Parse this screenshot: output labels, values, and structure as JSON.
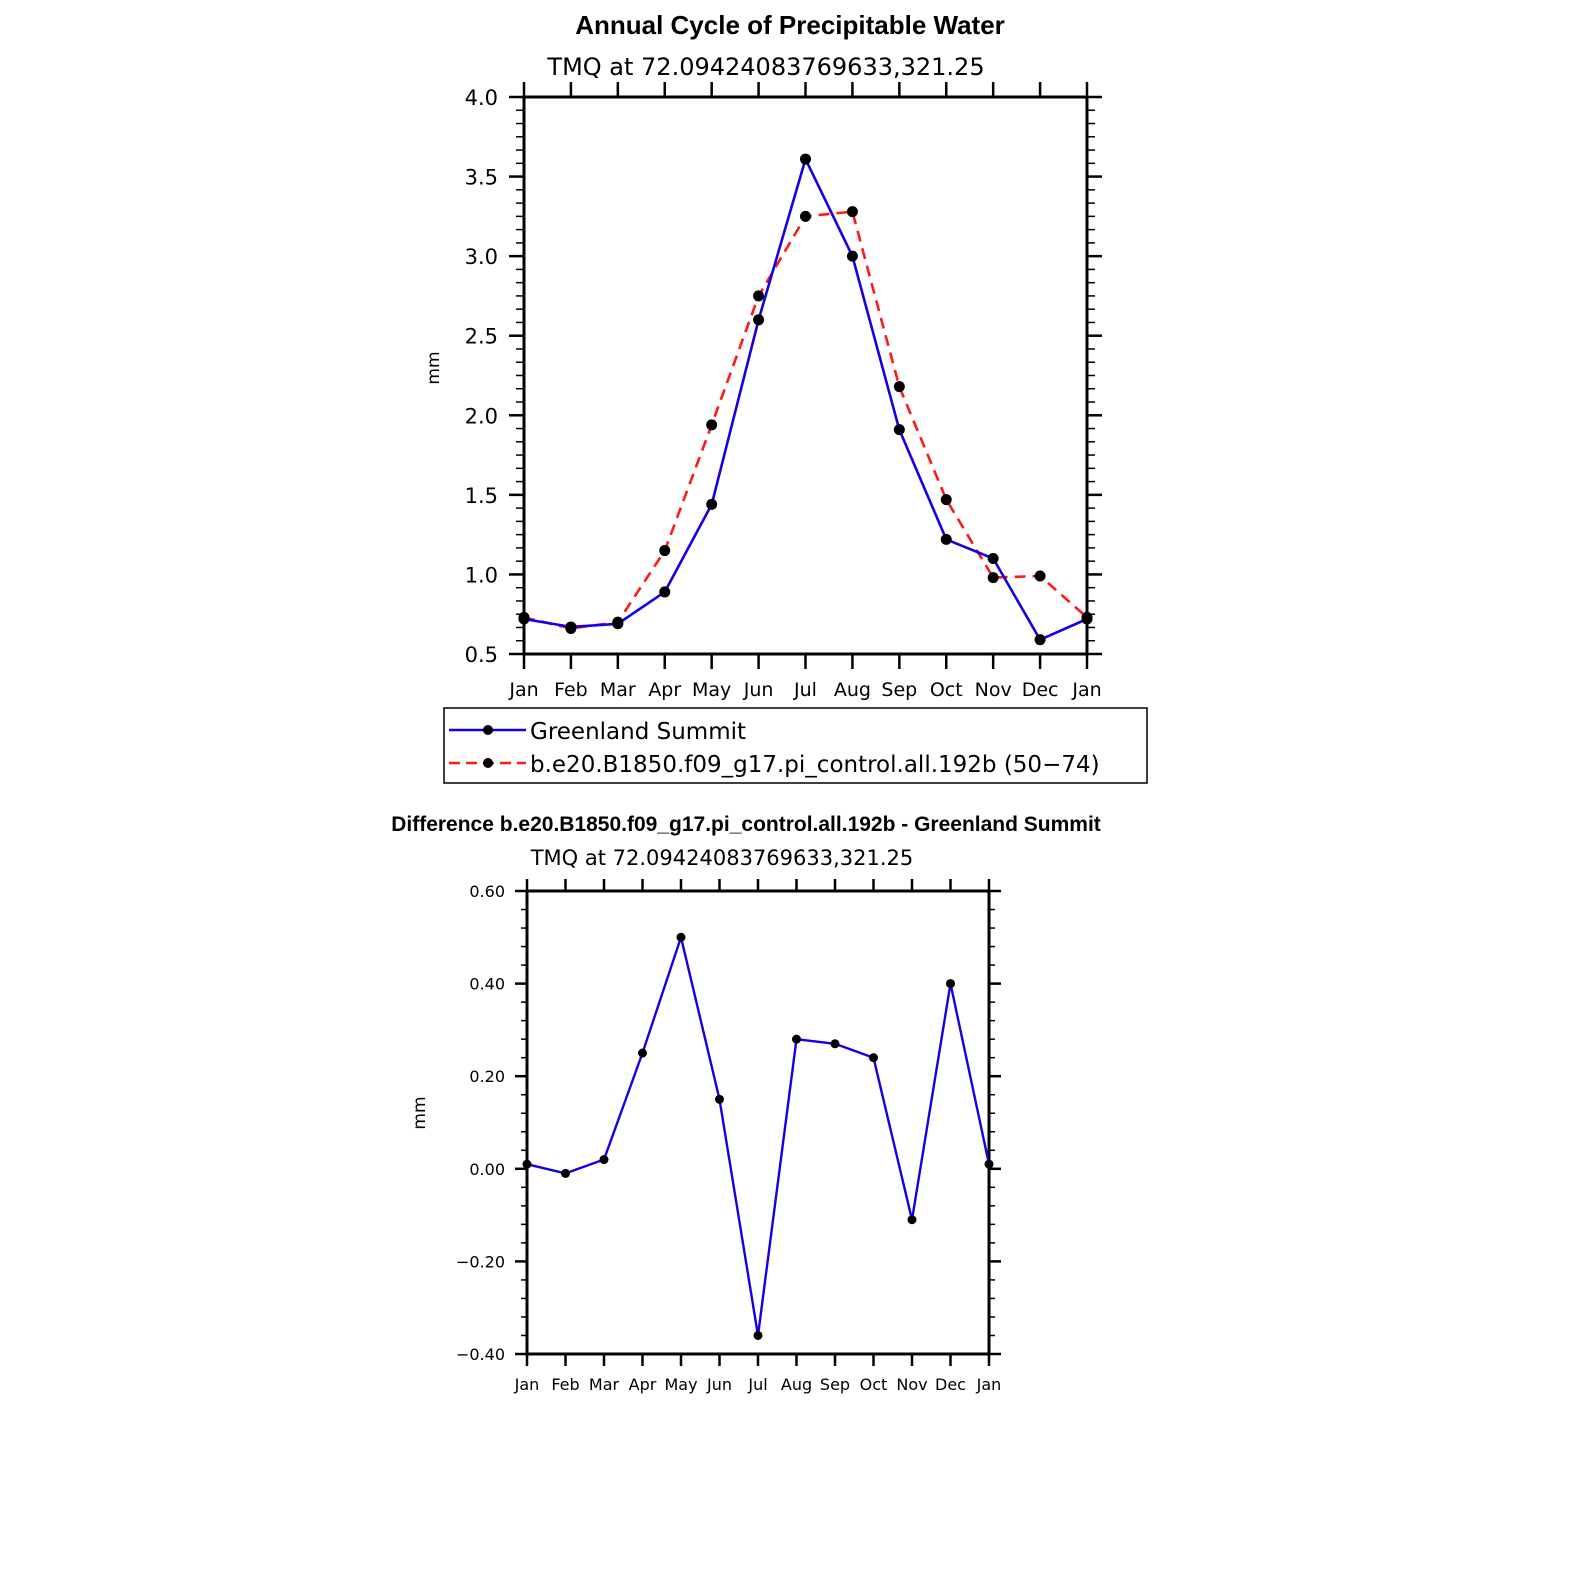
{
  "colors": {
    "obs": "#1400e6",
    "model": "#ff1a1a",
    "marker": "#000000",
    "axis": "#000000"
  },
  "chart_data": [
    {
      "type": "line",
      "title": "Annual Cycle of Precipitable Water",
      "subtitle": "TMQ at 72.09424083769633,321.25",
      "ylabel": "mm",
      "ylim": [
        0.5,
        4.0
      ],
      "yticks": [
        "0.5",
        "1.0",
        "1.5",
        "2.0",
        "2.5",
        "3.0",
        "3.5",
        "4.0"
      ],
      "yticks_values": [
        0.5,
        1.0,
        1.5,
        2.0,
        2.5,
        3.0,
        3.5,
        4.0
      ],
      "categories": [
        "Jan",
        "Feb",
        "Mar",
        "Apr",
        "May",
        "Jun",
        "Jul",
        "Aug",
        "Sep",
        "Oct",
        "Nov",
        "Dec",
        "Jan"
      ],
      "series": [
        {
          "name": "Greenland Summit",
          "style": "solid",
          "values": [
            0.72,
            0.67,
            0.69,
            0.89,
            1.44,
            2.6,
            3.61,
            3.0,
            1.91,
            1.22,
            1.1,
            0.59,
            0.72
          ]
        },
        {
          "name": "b.e20.B1850.f09_g17.pi_control.all.192b (50−74)",
          "style": "dashed",
          "values": [
            0.73,
            0.66,
            0.7,
            1.15,
            1.94,
            2.75,
            3.25,
            3.28,
            2.18,
            1.47,
            0.98,
            0.99,
            0.73
          ]
        }
      ],
      "legend": {
        "position": "bottom"
      }
    },
    {
      "type": "line",
      "title": "Difference b.e20.B1850.f09_g17.pi_control.all.192b - Greenland Summit",
      "subtitle": "TMQ at 72.09424083769633,321.25",
      "ylabel": "mm",
      "ylim": [
        -0.4,
        0.6
      ],
      "yticks": [
        "−0.40",
        "−0.20",
        "0.00",
        "0.20",
        "0.40",
        "0.60"
      ],
      "yticks_values": [
        -0.4,
        -0.2,
        0.0,
        0.2,
        0.4,
        0.6
      ],
      "categories": [
        "Jan",
        "Feb",
        "Mar",
        "Apr",
        "May",
        "Jun",
        "Jul",
        "Aug",
        "Sep",
        "Oct",
        "Nov",
        "Dec",
        "Jan"
      ],
      "series": [
        {
          "name": "Difference",
          "style": "solid",
          "values": [
            0.01,
            -0.01,
            0.02,
            0.25,
            0.5,
            0.15,
            -0.36,
            0.28,
            0.27,
            0.24,
            -0.11,
            0.4,
            0.01
          ]
        }
      ]
    }
  ]
}
